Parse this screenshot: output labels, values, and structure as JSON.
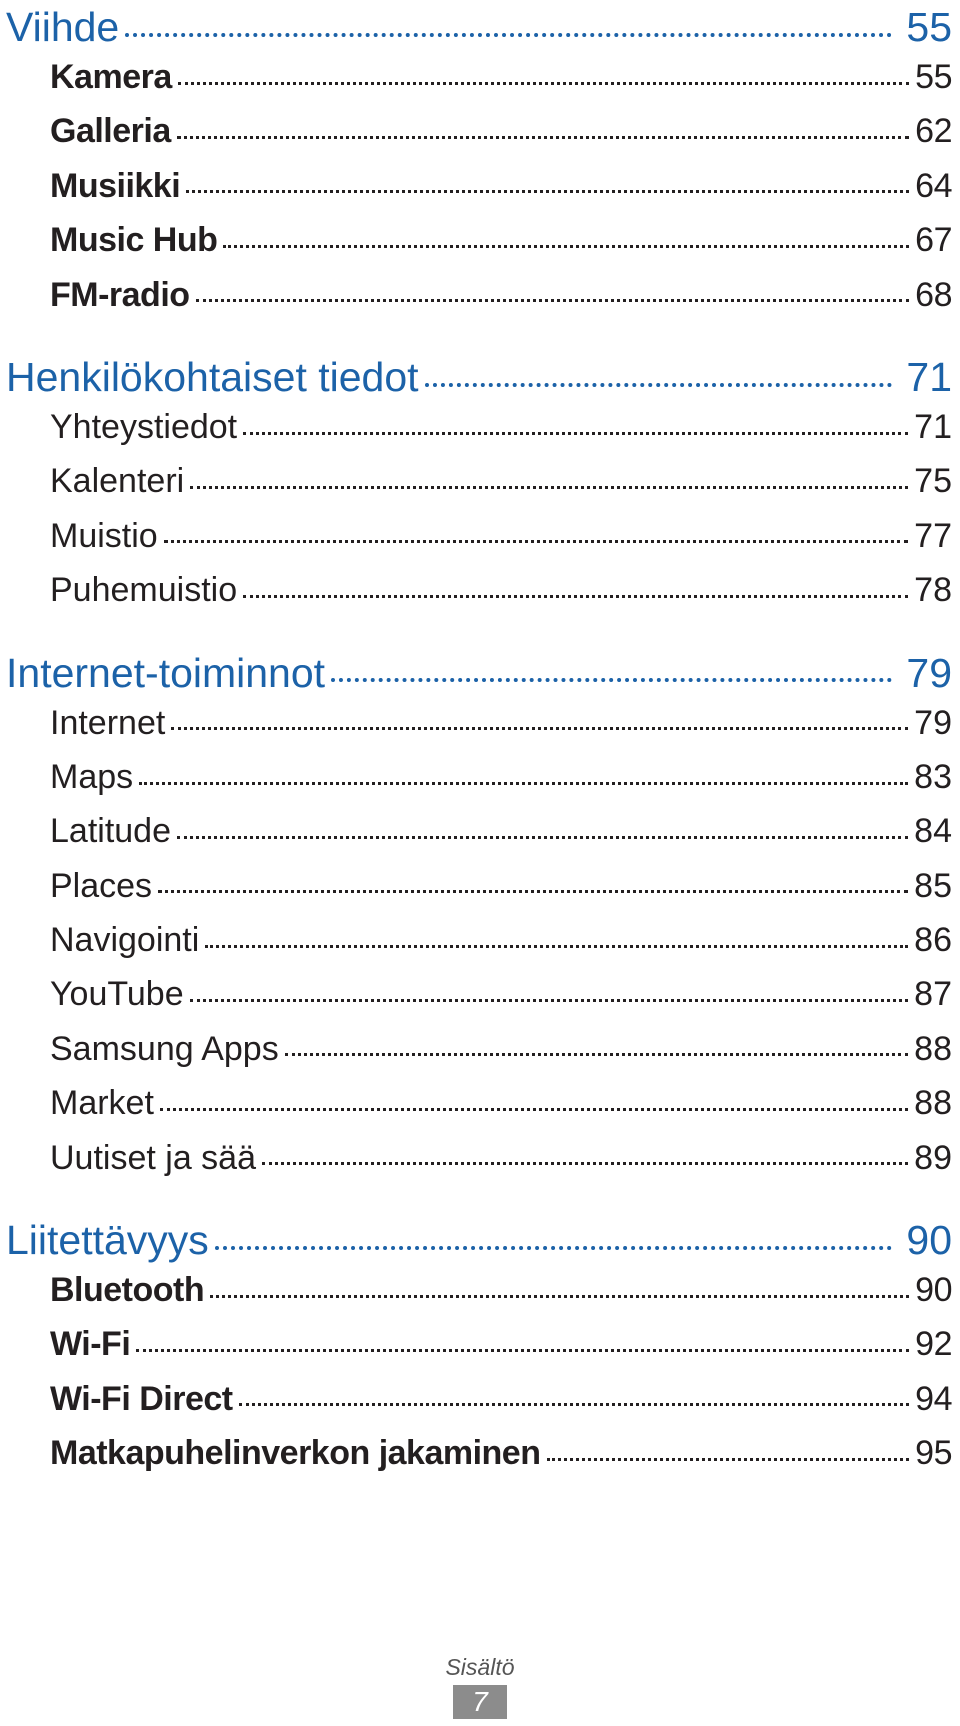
{
  "sections": [
    {
      "title": "Viihde",
      "page": "55",
      "items": [
        {
          "label": "Kamera",
          "page": "55",
          "bold": true
        },
        {
          "label": "Galleria",
          "page": "62",
          "bold": true
        },
        {
          "label": "Musiikki",
          "page": "64",
          "bold": true
        },
        {
          "label": "Music Hub",
          "page": "67",
          "bold": true
        },
        {
          "label": "FM-radio",
          "page": "68",
          "bold": true
        }
      ]
    },
    {
      "title": "Henkilökohtaiset tiedot",
      "page": "71",
      "items": [
        {
          "label": "Yhteystiedot",
          "page": "71",
          "bold": false
        },
        {
          "label": "Kalenteri",
          "page": "75",
          "bold": false
        },
        {
          "label": "Muistio",
          "page": "77",
          "bold": false
        },
        {
          "label": "Puhemuistio",
          "page": "78",
          "bold": false
        }
      ]
    },
    {
      "title": "Internet-toiminnot",
      "page": "79",
      "items": [
        {
          "label": "Internet",
          "page": "79",
          "bold": false
        },
        {
          "label": "Maps",
          "page": "83",
          "bold": false
        },
        {
          "label": "Latitude",
          "page": "84",
          "bold": false
        },
        {
          "label": "Places",
          "page": "85",
          "bold": false
        },
        {
          "label": "Navigointi",
          "page": "86",
          "bold": false
        },
        {
          "label": "YouTube",
          "page": "87",
          "bold": false
        },
        {
          "label": "Samsung Apps",
          "page": "88",
          "bold": false
        },
        {
          "label": "Market",
          "page": "88",
          "bold": false
        },
        {
          "label": "Uutiset ja sää",
          "page": "89",
          "bold": false
        }
      ]
    },
    {
      "title": "Liitettävyys",
      "page": "90",
      "items": [
        {
          "label": "Bluetooth",
          "page": "90",
          "bold": true
        },
        {
          "label": "Wi-Fi",
          "page": "92",
          "bold": true
        },
        {
          "label": "Wi-Fi Direct",
          "page": "94",
          "bold": true
        },
        {
          "label": "Matkapuhelinverkon jakaminen",
          "page": "95",
          "bold": true
        }
      ]
    }
  ],
  "footer": {
    "label": "Sisältö",
    "page_number": "7"
  },
  "colors": {
    "heading": "#1c62a8",
    "text": "#231f20",
    "footer_box": "#8c8c8c"
  }
}
